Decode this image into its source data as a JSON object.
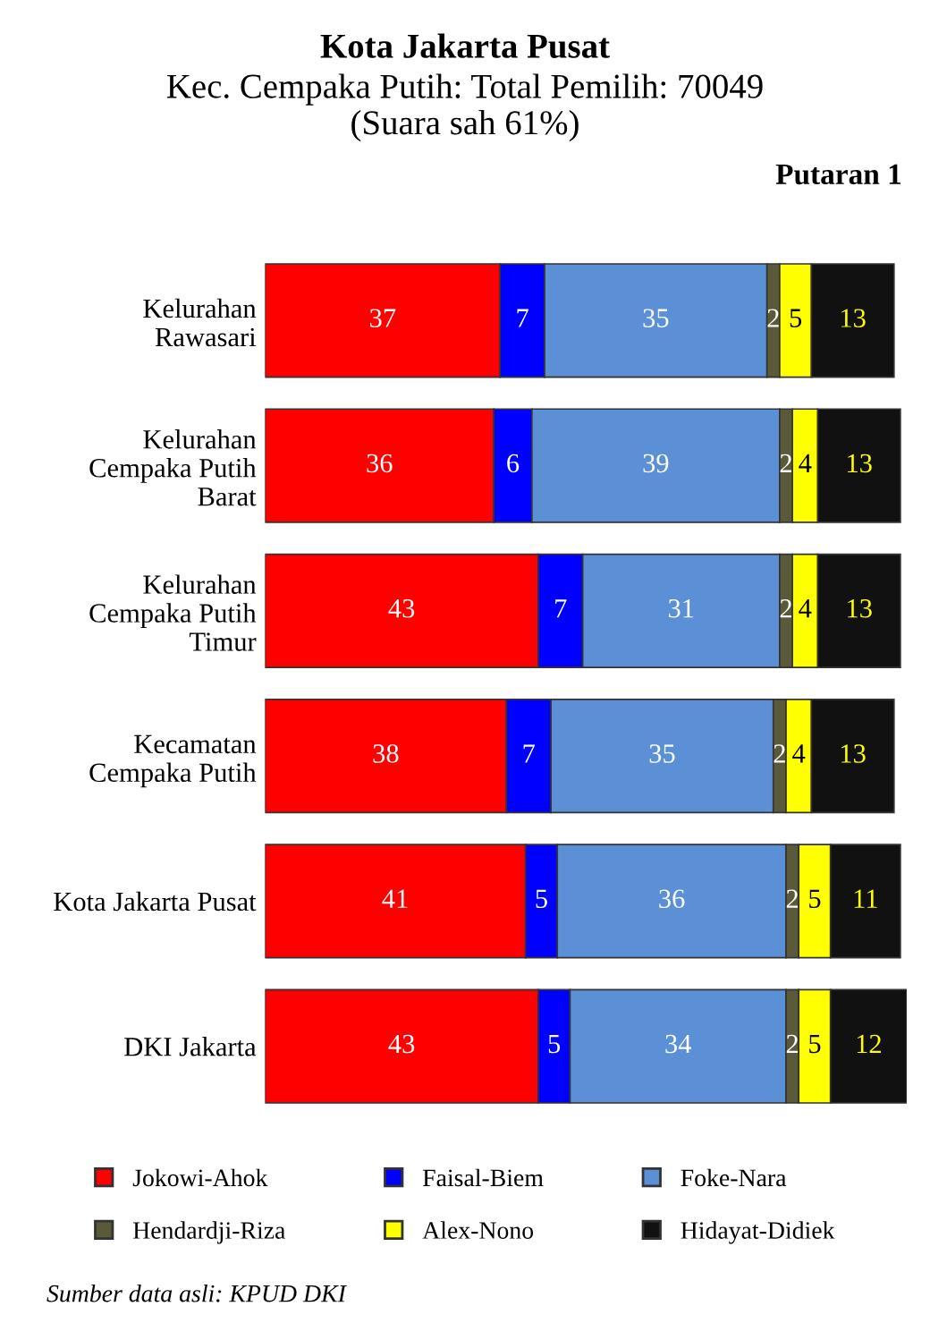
{
  "chart_data": {
    "type": "bar",
    "orientation": "horizontal",
    "stacked": true,
    "data_labels": true,
    "tick_labels": "y",
    "legend": "bottom",
    "grid": false,
    "title": "Kota Jakarta Pusat",
    "subtitle": "Kec. Cempaka Putih: Total Pemilih: 70049\n(Suara sah 61%)",
    "annotations": [
      "Putaran 1",
      "Sumber data asli: KPUD DKI"
    ],
    "categories": [
      "Kelurahan\nRawasari",
      "Kelurahan\nCempaka Putih\nBarat",
      "Kelurahan\nCempaka Putih\nTimur",
      "Kecamatan\nCempaka Putih",
      "Kota Jakarta Pusat",
      "DKI Jakarta"
    ],
    "series": [
      {
        "name": "Jokowi-Ahok",
        "color": "#ff0000",
        "values": [
          37,
          36,
          43,
          38,
          41,
          43
        ]
      },
      {
        "name": "Faisal-Biem",
        "color": "#0000ff",
        "values": [
          7,
          6,
          7,
          7,
          5,
          5
        ]
      },
      {
        "name": "Foke-Nara",
        "color": "#5b8fd6",
        "values": [
          35,
          39,
          31,
          35,
          36,
          34
        ]
      },
      {
        "name": "Hendardji-Riza",
        "color": "#5a5a3a",
        "values": [
          2,
          2,
          2,
          2,
          2,
          2
        ]
      },
      {
        "name": "Alex-Nono",
        "color": "#ffff00",
        "values": [
          5,
          4,
          4,
          4,
          5,
          5
        ]
      },
      {
        "name": "Hidayat-Didiek",
        "color": "#111111",
        "values": [
          13,
          13,
          13,
          13,
          11,
          12
        ]
      }
    ]
  }
}
